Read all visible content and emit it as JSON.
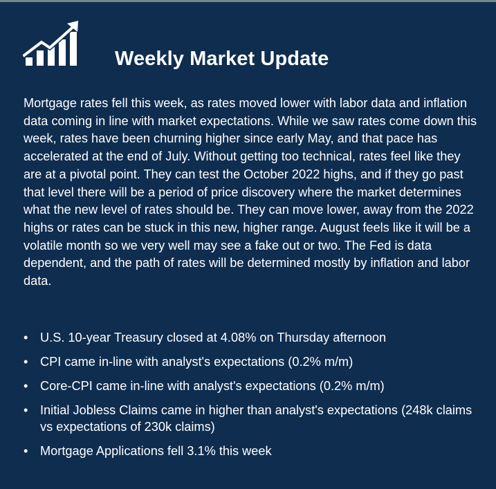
{
  "header": {
    "title": "Weekly Market Update",
    "icon": "growth-chart-icon"
  },
  "body": {
    "paragraph": "Mortgage rates fell this week, as rates moved lower with labor data and inflation data coming in line with market expectations. While we saw rates come down this week, rates have been churning higher since early May, and that pace has accelerated at the end of July. Without getting too technical, rates feel like they are at a pivotal point. They can test the October 2022 highs, and if they go past that level there will be a period of price discovery where the market determines what the new level of rates should be. They can move lower, away from the 2022 highs or rates can be stuck in this new, higher range. August feels like it will be a volatile month so we very well may see a fake out or two. The Fed is data dependent, and the path of rates will be determined mostly by inflation and labor data."
  },
  "bullets": [
    {
      "marker": "•",
      "text": "U.S. 10-year Treasury closed at 4.08% on Thursday afternoon"
    },
    {
      "marker": "•",
      "text": "CPI came in-line with analyst's expectations (0.2% m/m)"
    },
    {
      "marker": "•",
      "text": "Core-CPI came in-line with analyst's expectations (0.2% m/m)"
    },
    {
      "marker": "•",
      "text": "Initial Jobless Claims came in higher than analyst's expectations (248k claims vs expectations of 230k claims)"
    },
    {
      "marker": "•",
      "text": "Mortgage Applications fell 3.1% this week"
    }
  ],
  "colors": {
    "background": "#0f2d4f",
    "text": "#ffffff",
    "top_border": "#6f8b87"
  }
}
